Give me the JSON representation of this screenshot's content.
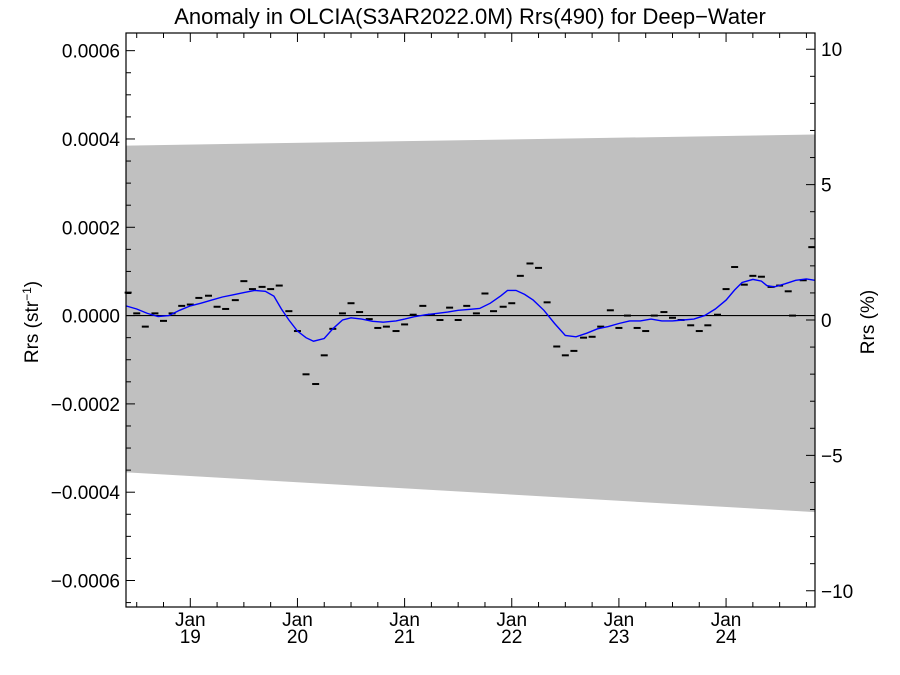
{
  "chart_data": {
    "type": "line",
    "title": "Anomaly in OLCIA(S3AR2022.0M) Rrs(490) for Deep−Water",
    "ylabel": "Rrs (str",
    "ylabel_sup": "−1",
    "ylabel_close": ")",
    "y2label": "Rrs (%)",
    "xlim": [
      2018.4,
      2024.83
    ],
    "ylim": [
      -0.00066,
      0.00064
    ],
    "y2lim": [
      -10.6,
      10.6
    ],
    "yticks": [
      -0.0006,
      -0.0004,
      -0.0002,
      0.0,
      0.0002,
      0.0004,
      0.0006
    ],
    "ytick_labels": [
      "−0.0006",
      "−0.0004",
      "−0.0002",
      "0.0000",
      "0.0002",
      "0.0004",
      "0.0006"
    ],
    "y2ticks": [
      -10,
      -5,
      0,
      5,
      10
    ],
    "y2tick_labels": [
      "−10",
      "−5",
      "0",
      "5",
      "10"
    ],
    "xticks": [
      {
        "x": 2019.0,
        "month": "Jan",
        "year": "19"
      },
      {
        "x": 2020.0,
        "month": "Jan",
        "year": "20"
      },
      {
        "x": 2021.0,
        "month": "Jan",
        "year": "21"
      },
      {
        "x": 2022.0,
        "month": "Jan",
        "year": "22"
      },
      {
        "x": 2023.0,
        "month": "Jan",
        "year": "23"
      },
      {
        "x": 2024.0,
        "month": "Jan",
        "year": "24"
      }
    ],
    "band": {
      "color": "#c0c0c0",
      "upper": [
        [
          2018.4,
          0.000385
        ],
        [
          2024.83,
          0.00041
        ]
      ],
      "lower": [
        [
          2018.4,
          -0.000355
        ],
        [
          2024.83,
          -0.000445
        ]
      ]
    },
    "zero_line": 0.0,
    "series": [
      {
        "style": "markers",
        "color": "#000000",
        "points": [
          [
            2018.42,
            5.2e-05
          ],
          [
            2018.5,
            5e-06
          ],
          [
            2018.58,
            -2.5e-05
          ],
          [
            2018.67,
            5e-06
          ],
          [
            2018.75,
            -1.2e-05
          ],
          [
            2018.83,
            5e-06
          ],
          [
            2018.92,
            2.2e-05
          ],
          [
            2019.0,
            2.5e-05
          ],
          [
            2019.08,
            4e-05
          ],
          [
            2019.17,
            4.5e-05
          ],
          [
            2019.25,
            2e-05
          ],
          [
            2019.33,
            1.5e-05
          ],
          [
            2019.42,
            3.5e-05
          ],
          [
            2019.5,
            7.8e-05
          ],
          [
            2019.58,
            6e-05
          ],
          [
            2019.67,
            6.5e-05
          ],
          [
            2019.75,
            6e-05
          ],
          [
            2019.83,
            6.8e-05
          ],
          [
            2019.92,
            1e-05
          ],
          [
            2020.0,
            -3.5e-05
          ],
          [
            2020.08,
            -0.000133
          ],
          [
            2020.17,
            -0.000155
          ],
          [
            2020.25,
            -9e-05
          ],
          [
            2020.33,
            -3e-05
          ],
          [
            2020.42,
            5e-06
          ],
          [
            2020.5,
            2.8e-05
          ],
          [
            2020.58,
            8e-06
          ],
          [
            2020.67,
            -8e-06
          ],
          [
            2020.75,
            -2.8e-05
          ],
          [
            2020.83,
            -2.5e-05
          ],
          [
            2020.92,
            -3.5e-05
          ],
          [
            2021.0,
            -2e-05
          ],
          [
            2021.08,
            2e-06
          ],
          [
            2021.17,
            2.2e-05
          ],
          [
            2021.25,
            2e-06
          ],
          [
            2021.33,
            -1e-05
          ],
          [
            2021.42,
            1.8e-05
          ],
          [
            2021.5,
            -1e-05
          ],
          [
            2021.58,
            2.2e-05
          ],
          [
            2021.67,
            5e-06
          ],
          [
            2021.75,
            5e-05
          ],
          [
            2021.83,
            1e-05
          ],
          [
            2021.92,
            2e-05
          ],
          [
            2022.0,
            2.8e-05
          ],
          [
            2022.08,
            9e-05
          ],
          [
            2022.17,
            0.000118
          ],
          [
            2022.25,
            0.000108
          ],
          [
            2022.33,
            3e-05
          ],
          [
            2022.42,
            -7e-05
          ],
          [
            2022.5,
            -9e-05
          ],
          [
            2022.58,
            -8e-05
          ],
          [
            2022.67,
            -5e-05
          ],
          [
            2022.75,
            -4.8e-05
          ],
          [
            2022.83,
            -2.5e-05
          ],
          [
            2022.92,
            1.2e-05
          ],
          [
            2023.0,
            -2.8e-05
          ],
          [
            2023.08,
            0.0
          ],
          [
            2023.17,
            -2.8e-05
          ],
          [
            2023.25,
            -3.5e-05
          ],
          [
            2023.33,
            0.0
          ],
          [
            2023.42,
            8e-06
          ],
          [
            2023.5,
            -5e-06
          ],
          [
            2023.58,
            -1e-05
          ],
          [
            2023.67,
            -2.2e-05
          ],
          [
            2023.75,
            -3.5e-05
          ],
          [
            2023.83,
            -2.2e-05
          ],
          [
            2023.92,
            2e-06
          ],
          [
            2024.0,
            6e-05
          ],
          [
            2024.08,
            0.00011
          ],
          [
            2024.17,
            7e-05
          ],
          [
            2024.25,
            9e-05
          ],
          [
            2024.33,
            8.8e-05
          ],
          [
            2024.42,
            6.5e-05
          ],
          [
            2024.5,
            6.8e-05
          ],
          [
            2024.58,
            5.5e-05
          ],
          [
            2024.62,
            0.0
          ],
          [
            2024.72,
            8e-05
          ],
          [
            2024.8,
            0.000155
          ]
        ]
      },
      {
        "style": "line",
        "color": "#0000ff",
        "points": [
          [
            2018.4,
            2.2e-05
          ],
          [
            2018.5,
            1.5e-05
          ],
          [
            2018.6,
            5e-06
          ],
          [
            2018.7,
            -2e-06
          ],
          [
            2018.8,
            0.0
          ],
          [
            2018.9,
            1.2e-05
          ],
          [
            2019.0,
            2.2e-05
          ],
          [
            2019.1,
            2.8e-05
          ],
          [
            2019.2,
            3.5e-05
          ],
          [
            2019.3,
            4.2e-05
          ],
          [
            2019.4,
            4.7e-05
          ],
          [
            2019.5,
            5.2e-05
          ],
          [
            2019.6,
            5.7e-05
          ],
          [
            2019.7,
            5.5e-05
          ],
          [
            2019.78,
            4.4e-05
          ],
          [
            2019.85,
            1.5e-05
          ],
          [
            2019.92,
            -1e-05
          ],
          [
            2020.0,
            -3.5e-05
          ],
          [
            2020.08,
            -5e-05
          ],
          [
            2020.15,
            -5.8e-05
          ],
          [
            2020.25,
            -5.2e-05
          ],
          [
            2020.33,
            -3e-05
          ],
          [
            2020.42,
            -1e-05
          ],
          [
            2020.5,
            -5e-06
          ],
          [
            2020.6,
            -8e-06
          ],
          [
            2020.7,
            -1.3e-05
          ],
          [
            2020.8,
            -1.5e-05
          ],
          [
            2020.92,
            -1.2e-05
          ],
          [
            2021.0,
            -8e-06
          ],
          [
            2021.1,
            -2e-06
          ],
          [
            2021.2,
            2e-06
          ],
          [
            2021.3,
            5e-06
          ],
          [
            2021.4,
            8e-06
          ],
          [
            2021.5,
            1.2e-05
          ],
          [
            2021.6,
            1.4e-05
          ],
          [
            2021.7,
            1.6e-05
          ],
          [
            2021.8,
            2.8e-05
          ],
          [
            2021.9,
            4.5e-05
          ],
          [
            2021.96,
            5.7e-05
          ],
          [
            2022.04,
            5.7e-05
          ],
          [
            2022.12,
            4.8e-05
          ],
          [
            2022.2,
            3.5e-05
          ],
          [
            2022.3,
            1.2e-05
          ],
          [
            2022.4,
            -1.8e-05
          ],
          [
            2022.5,
            -4.5e-05
          ],
          [
            2022.6,
            -4.8e-05
          ],
          [
            2022.7,
            -4e-05
          ],
          [
            2022.8,
            -3e-05
          ],
          [
            2022.9,
            -2.5e-05
          ],
          [
            2023.0,
            -1.8e-05
          ],
          [
            2023.1,
            -1.2e-05
          ],
          [
            2023.2,
            -1.2e-05
          ],
          [
            2023.3,
            -8e-06
          ],
          [
            2023.4,
            -1.2e-05
          ],
          [
            2023.5,
            -1.2e-05
          ],
          [
            2023.6,
            -1e-05
          ],
          [
            2023.7,
            -8e-06
          ],
          [
            2023.8,
            0.0
          ],
          [
            2023.9,
            1.5e-05
          ],
          [
            2024.0,
            3.5e-05
          ],
          [
            2024.08,
            5.8e-05
          ],
          [
            2024.15,
            7.5e-05
          ],
          [
            2024.25,
            8.2e-05
          ],
          [
            2024.33,
            7.8e-05
          ],
          [
            2024.38,
            6.8e-05
          ],
          [
            2024.45,
            6.5e-05
          ],
          [
            2024.55,
            7.2e-05
          ],
          [
            2024.65,
            8e-05
          ],
          [
            2024.75,
            8.3e-05
          ],
          [
            2024.83,
            8e-05
          ]
        ]
      }
    ]
  }
}
